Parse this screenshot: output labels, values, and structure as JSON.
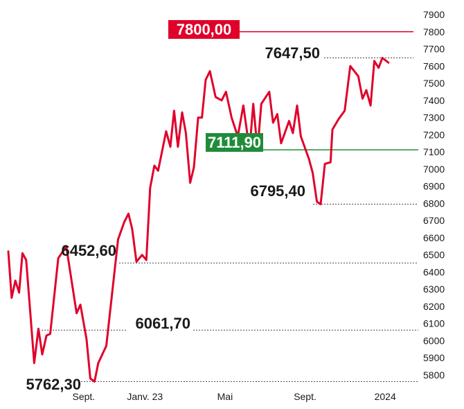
{
  "chart_data": {
    "type": "line",
    "title": "",
    "xlabel": "",
    "ylabel": "",
    "ylim": [
      5700,
      7900
    ],
    "yticks": [
      5800,
      5900,
      6000,
      6100,
      6200,
      6300,
      6400,
      6500,
      6600,
      6700,
      6800,
      6900,
      7000,
      7100,
      7200,
      7300,
      7400,
      7500,
      7600,
      7700,
      7800,
      7900
    ],
    "xticks": [
      {
        "label": "Sept.",
        "t": 16
      },
      {
        "label": "Janv. 23",
        "t": 29
      },
      {
        "label": "Mai",
        "t": 46
      },
      {
        "label": "Sept.",
        "t": 63
      },
      {
        "label": "2024",
        "t": 80
      }
    ],
    "xlim": [
      0,
      86
    ],
    "line_color": "#e0002a",
    "series": [
      {
        "values": [
          [
            0,
            6520
          ],
          [
            0.7,
            6250
          ],
          [
            1.5,
            6350
          ],
          [
            2.3,
            6280
          ],
          [
            3,
            6510
          ],
          [
            3.8,
            6470
          ],
          [
            5.5,
            5870
          ],
          [
            6.4,
            6070
          ],
          [
            7.2,
            5920
          ],
          [
            8.1,
            6030
          ],
          [
            8.9,
            6040
          ],
          [
            10.6,
            6480
          ],
          [
            12.3,
            6550
          ],
          [
            14.5,
            6160
          ],
          [
            15.3,
            6210
          ],
          [
            16.6,
            6010
          ],
          [
            17.4,
            5780
          ],
          [
            18.3,
            5762
          ],
          [
            19.1,
            5870
          ],
          [
            20.8,
            5970
          ],
          [
            23.3,
            6590
          ],
          [
            24.6,
            6690
          ],
          [
            25.5,
            6740
          ],
          [
            26.3,
            6650
          ],
          [
            27.2,
            6460
          ],
          [
            28.4,
            6500
          ],
          [
            29.3,
            6470
          ],
          [
            30.1,
            6890
          ],
          [
            31,
            7020
          ],
          [
            31.8,
            6990
          ],
          [
            33.5,
            7220
          ],
          [
            34.4,
            7130
          ],
          [
            35.2,
            7340
          ],
          [
            36,
            7130
          ],
          [
            36.9,
            7330
          ],
          [
            37.7,
            7210
          ],
          [
            38.6,
            6920
          ],
          [
            39.4,
            7010
          ],
          [
            40.3,
            7300
          ],
          [
            41.1,
            7300
          ],
          [
            41.9,
            7520
          ],
          [
            42.8,
            7570
          ],
          [
            44,
            7420
          ],
          [
            45.3,
            7400
          ],
          [
            46.2,
            7450
          ],
          [
            47.4,
            7300
          ],
          [
            48.7,
            7190
          ],
          [
            49.9,
            7370
          ],
          [
            51.2,
            7110
          ],
          [
            52,
            7380
          ],
          [
            52.9,
            7110
          ],
          [
            53.7,
            7380
          ],
          [
            55.4,
            7450
          ],
          [
            56.2,
            7270
          ],
          [
            57.1,
            7320
          ],
          [
            57.9,
            7150
          ],
          [
            59.6,
            7280
          ],
          [
            60.4,
            7210
          ],
          [
            61.3,
            7370
          ],
          [
            62.1,
            7190
          ],
          [
            63.8,
            7060
          ],
          [
            64.6,
            6980
          ],
          [
            65.5,
            6810
          ],
          [
            66.3,
            6795
          ],
          [
            67.2,
            7030
          ],
          [
            68.4,
            7040
          ],
          [
            68.8,
            7230
          ],
          [
            70.1,
            7290
          ],
          [
            71.4,
            7340
          ],
          [
            72.6,
            7600
          ],
          [
            74.3,
            7540
          ],
          [
            75.2,
            7410
          ],
          [
            76,
            7460
          ],
          [
            76.9,
            7370
          ],
          [
            77.7,
            7630
          ],
          [
            78.6,
            7590
          ],
          [
            79.4,
            7647.5
          ],
          [
            80.7,
            7620
          ]
        ]
      }
    ],
    "annotations": [
      {
        "label": "7800,00",
        "value": 7800,
        "style": "red-box"
      },
      {
        "label": "7647,50",
        "value": 7647.5,
        "style": "text-dotted"
      },
      {
        "label": "7111,90",
        "value": 7111.9,
        "style": "green-box"
      },
      {
        "label": "6795,40",
        "value": 6795.4,
        "style": "text-dotted"
      },
      {
        "label": "6452,60",
        "value": 6452.6,
        "style": "text-dotted"
      },
      {
        "label": "6061,70",
        "value": 6061.7,
        "style": "text-dotted"
      },
      {
        "label": "5762,30",
        "value": 5762.3,
        "style": "text-dotted"
      }
    ],
    "colors": {
      "red": "#e0002a",
      "green": "#1f8c3a"
    }
  }
}
